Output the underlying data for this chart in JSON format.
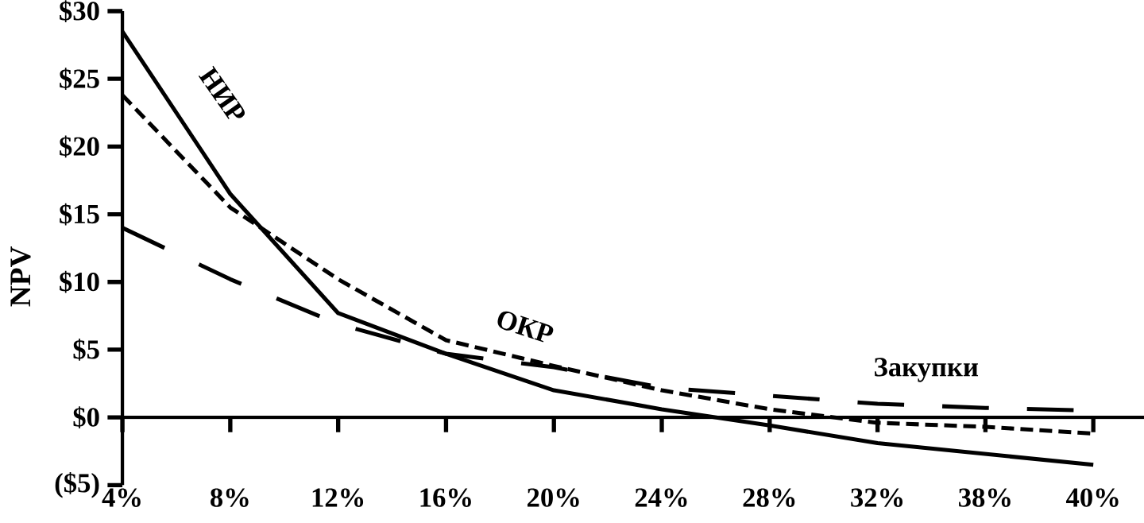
{
  "chart_data": {
    "type": "line",
    "ylabel": "NPV",
    "categories": [
      "4%",
      "8%",
      "12%",
      "16%",
      "20%",
      "24%",
      "28%",
      "32%",
      "38%",
      "40%"
    ],
    "series": [
      {
        "name": "НИР",
        "color": "#000000",
        "line_style": "solid",
        "values": [
          28.5,
          16.5,
          7.7,
          4.7,
          2.0,
          0.6,
          -0.6,
          -1.9,
          -2.7,
          -3.5
        ]
      },
      {
        "name": "ОКР",
        "color": "#000000",
        "line_style": "dashed",
        "values": [
          23.8,
          15.5,
          10.2,
          5.7,
          3.8,
          2.0,
          0.6,
          -0.4,
          -0.7,
          -1.2
        ]
      },
      {
        "name": "Закупки",
        "color": "#000000",
        "line_style": "dashed",
        "values": [
          14.0,
          10.2,
          6.9,
          4.7,
          3.7,
          2.2,
          1.6,
          1.0,
          0.7,
          0.5
        ]
      }
    ],
    "ylim": [
      -5,
      30
    ],
    "yticks": [
      {
        "value": -5,
        "label": "($5)"
      },
      {
        "value": 0,
        "label": "$0"
      },
      {
        "value": 5,
        "label": "$5"
      },
      {
        "value": 10,
        "label": "$10"
      },
      {
        "value": 15,
        "label": "$15"
      },
      {
        "value": 20,
        "label": "$20"
      },
      {
        "value": 25,
        "label": "$25"
      },
      {
        "value": 30,
        "label": "$30"
      }
    ],
    "grid": false,
    "legend": false,
    "marker": "none"
  }
}
